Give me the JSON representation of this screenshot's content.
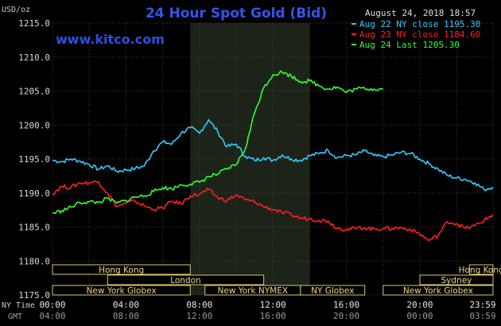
{
  "chart_data": {
    "type": "line",
    "title": "24 Hour Spot Gold (Bid)",
    "watermark": "www.kitco.com",
    "ylabel": "USD/oz",
    "timestamp": "August 24, 2018 18:57",
    "ylim": [
      1175,
      1215
    ],
    "y_ticks": [
      "1215.0",
      "1210.0",
      "1205.0",
      "1200.0",
      "1195.0",
      "1190.0",
      "1185.0",
      "1180.0",
      "1175.0"
    ],
    "grid": true,
    "legend_position": "top-right",
    "x_row_labels": {
      "ny": "NY Time",
      "gmt": "GMT"
    },
    "x_ticks_ny": [
      "00:00",
      "04:00",
      "08:00",
      "12:00",
      "16:00",
      "20:00",
      "23:59"
    ],
    "x_ticks_gmt": [
      "04:00",
      "08:00",
      "12:00",
      "16:00",
      "20:00",
      "00:00",
      "03:59"
    ],
    "highlight_band_hours": [
      7.5,
      14
    ],
    "series": [
      {
        "name": "Aug 22 NY close 1195.30",
        "color": "#33ccff",
        "x": [
          0,
          0.5,
          1,
          1.5,
          2,
          2.5,
          3,
          3.5,
          4,
          4.5,
          5,
          5.5,
          6,
          6.5,
          7,
          7.5,
          8,
          8.5,
          9,
          9.5,
          10,
          10.5,
          11,
          11.5,
          12,
          12.5,
          13,
          13.5,
          14,
          14.5,
          15,
          15.5,
          16,
          16.5,
          17,
          17.5,
          18,
          18.5,
          19,
          19.5,
          20,
          20.5,
          21,
          21.5,
          22,
          22.5,
          23,
          23.5,
          23.98
        ],
        "y": [
          1194.8,
          1194.6,
          1195.0,
          1194.7,
          1194.2,
          1193.5,
          1194.0,
          1193.2,
          1193.4,
          1193.6,
          1194.0,
          1196.2,
          1197.5,
          1197.2,
          1198.8,
          1199.6,
          1198.8,
          1200.8,
          1199.0,
          1196.8,
          1197.2,
          1195.4,
          1194.8,
          1195.2,
          1194.8,
          1195.6,
          1195.0,
          1194.8,
          1195.5,
          1195.8,
          1196.3,
          1195.2,
          1195.5,
          1195.6,
          1196.2,
          1195.5,
          1195.3,
          1195.6,
          1196.0,
          1195.8,
          1195.0,
          1194.3,
          1193.5,
          1192.6,
          1192.2,
          1192.0,
          1191.5,
          1190.5,
          1190.9
        ]
      },
      {
        "name": "Aug 23 NY close 1184.60",
        "color": "#ff2020",
        "x": [
          0,
          0.5,
          1,
          1.5,
          2,
          2.5,
          3,
          3.5,
          4,
          4.5,
          5,
          5.5,
          6,
          6.5,
          7,
          7.5,
          8,
          8.5,
          9,
          9.5,
          10,
          10.5,
          11,
          11.5,
          12,
          12.5,
          13,
          13.5,
          14,
          14.5,
          15,
          15.5,
          16,
          16.5,
          17,
          17.5,
          18,
          18.5,
          19,
          19.5,
          20,
          20.5,
          21,
          21.5,
          22,
          22.5,
          23,
          23.5,
          23.98
        ],
        "y": [
          1189.9,
          1191.0,
          1190.8,
          1191.5,
          1191.5,
          1191.7,
          1190.0,
          1188.0,
          1188.5,
          1188.8,
          1188.1,
          1187.6,
          1187.8,
          1188.8,
          1188.4,
          1189.6,
          1189.8,
          1190.5,
          1189.3,
          1188.9,
          1189.7,
          1189.0,
          1188.7,
          1188.0,
          1187.6,
          1187.1,
          1186.8,
          1186.3,
          1186.2,
          1186.0,
          1185.9,
          1184.8,
          1184.7,
          1184.8,
          1184.9,
          1184.7,
          1184.8,
          1184.8,
          1184.9,
          1184.6,
          1184.0,
          1183.0,
          1183.8,
          1185.8,
          1185.5,
          1184.8,
          1185.2,
          1186.0,
          1186.8
        ]
      },
      {
        "name": "Aug 24 Last 1205.30",
        "color": "#33ff33",
        "x": [
          0,
          0.5,
          1,
          1.5,
          2,
          2.5,
          3,
          3.5,
          4,
          4.5,
          5,
          5.5,
          6,
          6.5,
          7,
          7.5,
          8,
          8.5,
          9,
          9.5,
          10,
          10.5,
          11,
          11.5,
          12,
          12.5,
          13,
          13.5,
          14,
          14.5,
          15,
          15.5,
          16,
          16.5,
          17,
          17.5,
          18
        ],
        "y": [
          1187.0,
          1187.4,
          1187.9,
          1188.6,
          1188.7,
          1188.6,
          1189.2,
          1188.5,
          1188.9,
          1189.4,
          1189.6,
          1190.2,
          1190.8,
          1190.6,
          1191.2,
          1191.3,
          1191.6,
          1192.4,
          1192.8,
          1193.5,
          1194.2,
          1196.5,
          1201.8,
          1205.5,
          1207.4,
          1207.8,
          1207.2,
          1206.4,
          1206.5,
          1205.8,
          1205.3,
          1205.6,
          1204.8,
          1205.3,
          1205.4,
          1205.3,
          1205.3
        ]
      }
    ],
    "sessions": [
      {
        "name": "Hong Kong",
        "from": 0,
        "to": 7.5,
        "row": 0
      },
      {
        "name": "Hong Kong",
        "from": 22.7,
        "to": 23.98,
        "row": 0
      },
      {
        "name": "London",
        "from": 3,
        "to": 11.5,
        "row": 1
      },
      {
        "name": "Sydney",
        "from": 20,
        "to": 23.98,
        "row": 1
      },
      {
        "name": "New York Globex",
        "from": 0,
        "to": 7.5,
        "row": 2
      },
      {
        "name": "New York NYMEX",
        "from": 8.3,
        "to": 13.5,
        "row": 2
      },
      {
        "name": "NY Globex",
        "from": 13.5,
        "to": 17,
        "row": 2
      },
      {
        "name": "New York Globex",
        "from": 18,
        "to": 23.98,
        "row": 2
      }
    ]
  }
}
